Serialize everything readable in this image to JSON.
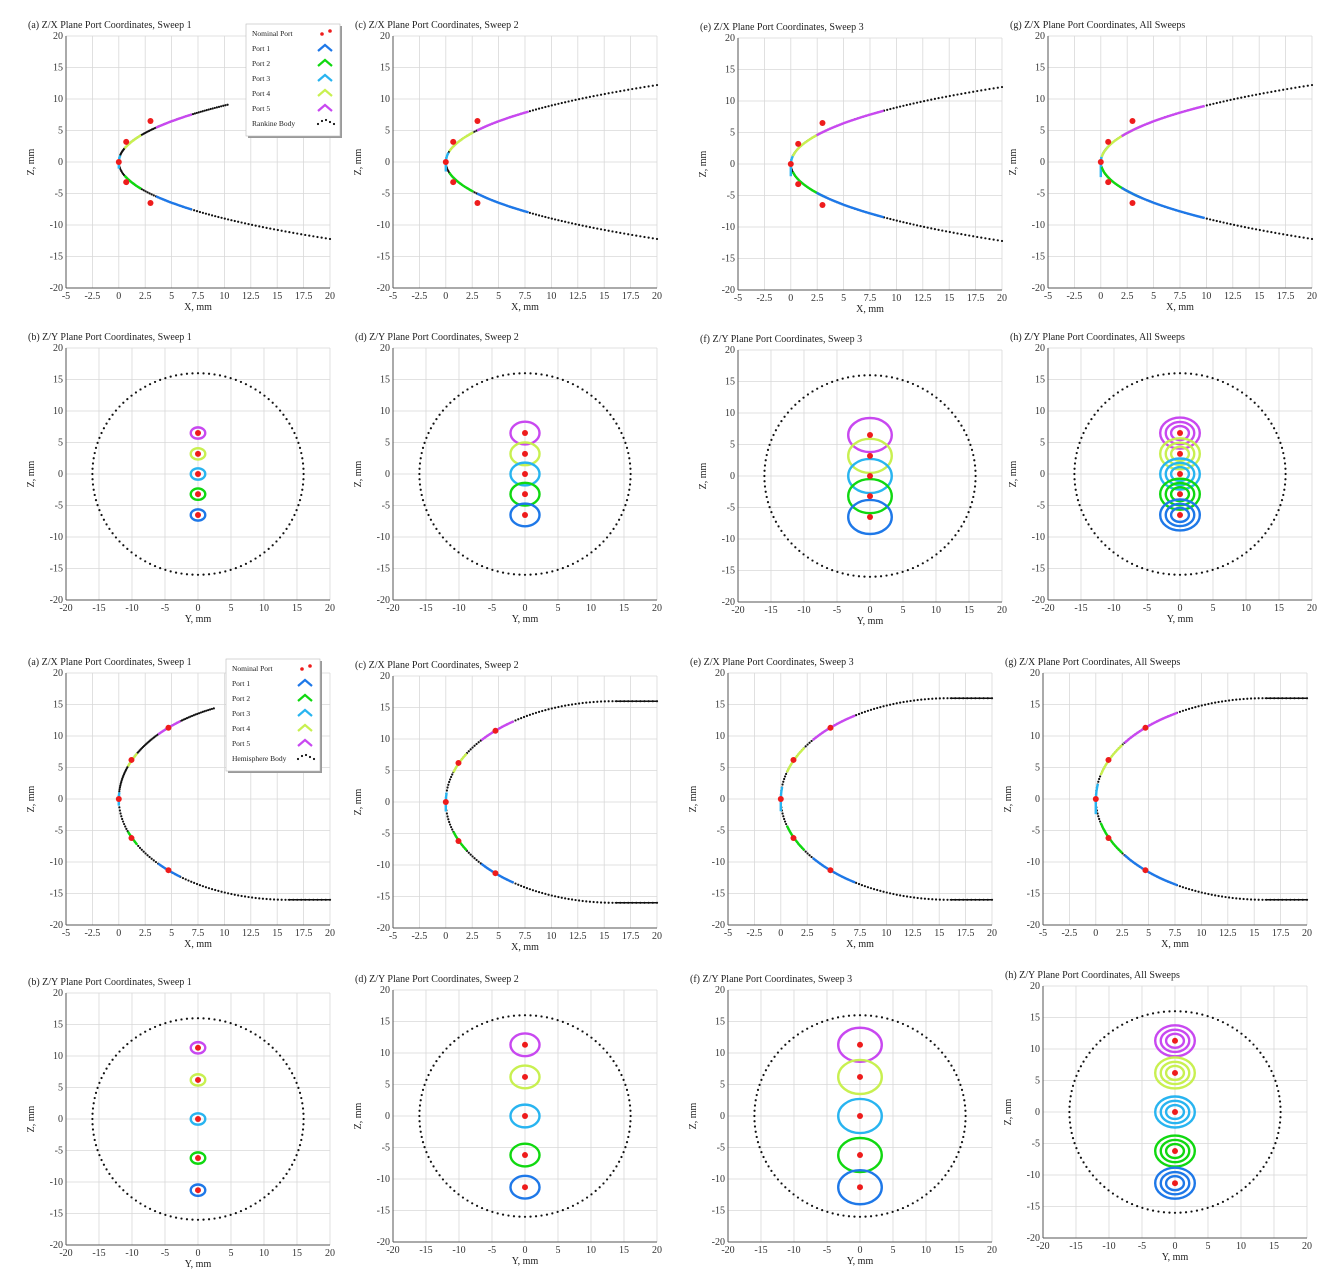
{
  "colors": {
    "nominal": "#ee1c1c",
    "port1": "#1e78e8",
    "port2": "#10d810",
    "port3": "#28b4f0",
    "port4": "#c8f050",
    "port5": "#c848f0",
    "body": "#111111",
    "grid": "#d8d8d8"
  },
  "icons": {
    "legend_swatch": "chevron-icon",
    "nominal_marker": "dot-icon"
  },
  "legends": {
    "rankine": [
      "Nominal Port",
      "Port 1",
      "Port 2",
      "Port 3",
      "Port 4",
      "Port 5",
      "Rankine Body"
    ],
    "hemisphere": [
      "Nominal Port",
      "Port 1",
      "Port 2",
      "Port 3",
      "Port 4",
      "Port 5",
      "Hemisphere Body"
    ]
  },
  "chart_data": [
    {
      "id": "rz1",
      "type": "scatter",
      "body": "rankine",
      "view": "zx",
      "sweep": 1,
      "title": "(a) Z/X Plane Port Coordinates, Sweep 1",
      "xlabel": "X, mm",
      "ylabel": "Z, mm",
      "xlim": [
        -5,
        20
      ],
      "ylim": [
        -20,
        20
      ],
      "xticks": [
        "-5",
        "-2.5",
        "0",
        "2.5",
        "5",
        "7.5",
        "10",
        "12.5",
        "15",
        "17.5",
        "20"
      ],
      "yticks": [
        "20",
        "15",
        "10",
        "5",
        "0",
        "-5",
        "-10",
        "-15",
        "-20"
      ],
      "nominal_ports": [
        {
          "x": 0,
          "z": 0
        },
        {
          "x": 0.7,
          "z": 3.2
        },
        {
          "x": 0.7,
          "z": -3.2
        },
        {
          "x": 3,
          "z": 6.5
        },
        {
          "x": 3,
          "z": -6.5
        }
      ],
      "body_points": "rankine profile x=0..20, z=±0..±13",
      "legend": "top-right"
    },
    {
      "id": "rz2",
      "type": "scatter",
      "body": "rankine",
      "view": "zx",
      "sweep": 2,
      "title": "(c) Z/X Plane Port Coordinates, Sweep 2",
      "xlabel": "X, mm",
      "ylabel": "Z, mm",
      "xlim": [
        -5,
        20
      ],
      "ylim": [
        -20,
        20
      ],
      "xticks": [
        "-5",
        "-2.5",
        "0",
        "2.5",
        "5",
        "7.5",
        "10",
        "12.5",
        "15",
        "17.5",
        "20"
      ],
      "yticks": [
        "20",
        "15",
        "10",
        "5",
        "0",
        "-5",
        "-10",
        "-15",
        "-20"
      ],
      "nominal_ports": [
        {
          "x": 0,
          "z": 0
        },
        {
          "x": 0.7,
          "z": 3.2
        },
        {
          "x": 0.7,
          "z": -3.2
        },
        {
          "x": 3,
          "z": 6.5
        },
        {
          "x": 3,
          "z": -6.5
        }
      ]
    },
    {
      "id": "rz3",
      "type": "scatter",
      "body": "rankine",
      "view": "zx",
      "sweep": 3,
      "title": "(e) Z/X Plane Port Coordinates, Sweep 3",
      "xlabel": "X, mm",
      "ylabel": "Z, mm",
      "xlim": [
        -5,
        20
      ],
      "ylim": [
        -20,
        20
      ],
      "xticks": [
        "-5",
        "-2.5",
        "0",
        "2.5",
        "5",
        "7.5",
        "10",
        "12.5",
        "15",
        "17.5",
        "20"
      ],
      "yticks": [
        "20",
        "15",
        "10",
        "5",
        "0",
        "-5",
        "-10",
        "-15",
        "-20"
      ],
      "nominal_ports": [
        {
          "x": 0,
          "z": 0
        },
        {
          "x": 0.7,
          "z": 3.2
        },
        {
          "x": 0.7,
          "z": -3.2
        },
        {
          "x": 3,
          "z": 6.5
        },
        {
          "x": 3,
          "z": -6.5
        }
      ]
    },
    {
      "id": "rz4",
      "type": "scatter",
      "body": "rankine",
      "view": "zx",
      "sweep": 4,
      "title": "(g) Z/X Plane Port Coordinates, All Sweeps",
      "xlabel": "X, mm",
      "ylabel": "Z, mm",
      "xlim": [
        -5,
        20
      ],
      "ylim": [
        -20,
        20
      ],
      "xticks": [
        "-5",
        "-2.5",
        "0",
        "2.5",
        "5",
        "7.5",
        "10",
        "12.5",
        "15",
        "17.5",
        "20"
      ],
      "yticks": [
        "20",
        "15",
        "10",
        "5",
        "0",
        "-5",
        "-10",
        "-15",
        "-20"
      ],
      "nominal_ports": [
        {
          "x": 0,
          "z": 0
        },
        {
          "x": 0.7,
          "z": 3.2
        },
        {
          "x": 0.7,
          "z": -3.2
        },
        {
          "x": 3,
          "z": 6.5
        },
        {
          "x": 3,
          "z": -6.5
        }
      ]
    },
    {
      "id": "ry1",
      "type": "scatter",
      "body": "rankine",
      "view": "zy",
      "sweep": 1,
      "title": "(b) Z/Y Plane Port Coordinates, Sweep 1",
      "xlabel": "Y, mm",
      "ylabel": "Z, mm",
      "xlim": [
        -20,
        20
      ],
      "ylim": [
        -20,
        20
      ],
      "xticks": [
        "-20",
        "-15",
        "-10",
        "-5",
        "0",
        "5",
        "10",
        "15",
        "20"
      ],
      "yticks": [
        "20",
        "15",
        "10",
        "5",
        "0",
        "-5",
        "-10",
        "-15",
        "-20"
      ],
      "body_radius": 16,
      "nominal_ports": [
        {
          "y": 0,
          "z": 6.5
        },
        {
          "y": 0,
          "z": 3.2
        },
        {
          "y": 0,
          "z": 0
        },
        {
          "y": 0,
          "z": -3.2
        },
        {
          "y": 0,
          "z": -6.5
        }
      ],
      "port_ring_radius_mm": 1.1
    },
    {
      "id": "ry2",
      "type": "scatter",
      "body": "rankine",
      "view": "zy",
      "sweep": 2,
      "title": "(d) Z/Y Plane Port Coordinates, Sweep 2",
      "xlabel": "Y, mm",
      "ylabel": "Z, mm",
      "xlim": [
        -20,
        20
      ],
      "ylim": [
        -20,
        20
      ],
      "xticks": [
        "-20",
        "-15",
        "-10",
        "-5",
        "0",
        "5",
        "10",
        "15",
        "20"
      ],
      "yticks": [
        "20",
        "15",
        "10",
        "5",
        "0",
        "-5",
        "-10",
        "-15",
        "-20"
      ],
      "body_radius": 16,
      "nominal_ports": [
        {
          "y": 0,
          "z": 6.5
        },
        {
          "y": 0,
          "z": 3.2
        },
        {
          "y": 0,
          "z": 0
        },
        {
          "y": 0,
          "z": -3.2
        },
        {
          "y": 0,
          "z": -6.5
        }
      ],
      "port_ring_radius_mm": 2.2
    },
    {
      "id": "ry3",
      "type": "scatter",
      "body": "rankine",
      "view": "zy",
      "sweep": 3,
      "title": "(f) Z/Y Plane Port Coordinates, Sweep 3",
      "xlabel": "Y, mm",
      "ylabel": "Z, mm",
      "xlim": [
        -20,
        20
      ],
      "ylim": [
        -20,
        20
      ],
      "xticks": [
        "-20",
        "-15",
        "-10",
        "-5",
        "0",
        "5",
        "10",
        "15",
        "20"
      ],
      "yticks": [
        "20",
        "15",
        "10",
        "5",
        "0",
        "-5",
        "-10",
        "-15",
        "-20"
      ],
      "body_radius": 16,
      "nominal_ports": [
        {
          "y": 0,
          "z": 6.5
        },
        {
          "y": 0,
          "z": 3.2
        },
        {
          "y": 0,
          "z": 0
        },
        {
          "y": 0,
          "z": -3.2
        },
        {
          "y": 0,
          "z": -6.5
        }
      ],
      "port_ring_radius_mm": 3.3
    },
    {
      "id": "ry4",
      "type": "scatter",
      "body": "rankine",
      "view": "zy",
      "sweep": 4,
      "title": "(h) Z/Y Plane Port Coordinates, All Sweeps",
      "xlabel": "Y, mm",
      "ylabel": "Z, mm",
      "xlim": [
        -20,
        20
      ],
      "ylim": [
        -20,
        20
      ],
      "xticks": [
        "-20",
        "-15",
        "-10",
        "-5",
        "0",
        "5",
        "10",
        "15",
        "20"
      ],
      "yticks": [
        "20",
        "15",
        "10",
        "5",
        "0",
        "-5",
        "-10",
        "-15",
        "-20"
      ],
      "body_radius": 16,
      "nominal_ports": [
        {
          "y": 0,
          "z": 6.5
        },
        {
          "y": 0,
          "z": 3.2
        },
        {
          "y": 0,
          "z": 0
        },
        {
          "y": 0,
          "z": -3.2
        },
        {
          "y": 0,
          "z": -6.5
        }
      ],
      "port_ring_radius_mm": 3.0
    },
    {
      "id": "hz1",
      "type": "scatter",
      "body": "hemisphere",
      "view": "zx",
      "sweep": 1,
      "title": "(a) Z/X Plane Port Coordinates, Sweep 1",
      "xlabel": "X, mm",
      "ylabel": "Z, mm",
      "xlim": [
        -5,
        20
      ],
      "ylim": [
        -20,
        20
      ],
      "xticks": [
        "-5",
        "-2.5",
        "0",
        "2.5",
        "5",
        "7.5",
        "10",
        "12.5",
        "15",
        "17.5",
        "20"
      ],
      "yticks": [
        "20",
        "15",
        "10",
        "5",
        "0",
        "-5",
        "-10",
        "-15",
        "-20"
      ],
      "nominal_ports": [
        {
          "x": 0,
          "z": 0
        },
        {
          "x": 1.2,
          "z": 6.2
        },
        {
          "x": 1.2,
          "z": -6.2
        },
        {
          "x": 4.7,
          "z": 11.3
        },
        {
          "x": 4.7,
          "z": -11.3
        }
      ],
      "legend": "top-right"
    },
    {
      "id": "hz2",
      "type": "scatter",
      "body": "hemisphere",
      "view": "zx",
      "sweep": 2,
      "title": "(c) Z/X Plane Port Coordinates, Sweep 2",
      "xlabel": "X, mm",
      "ylabel": "Z, mm",
      "xlim": [
        -5,
        20
      ],
      "ylim": [
        -20,
        20
      ],
      "xticks": [
        "-5",
        "-2.5",
        "0",
        "2.5",
        "5",
        "7.5",
        "10",
        "12.5",
        "15",
        "17.5",
        "20"
      ],
      "yticks": [
        "20",
        "15",
        "10",
        "5",
        "0",
        "-5",
        "-10",
        "-15",
        "-20"
      ],
      "nominal_ports": [
        {
          "x": 0,
          "z": 0
        },
        {
          "x": 1.2,
          "z": 6.2
        },
        {
          "x": 1.2,
          "z": -6.2
        },
        {
          "x": 4.7,
          "z": 11.3
        },
        {
          "x": 4.7,
          "z": -11.3
        }
      ]
    },
    {
      "id": "hz3",
      "type": "scatter",
      "body": "hemisphere",
      "view": "zx",
      "sweep": 3,
      "title": "(e) Z/X Plane Port Coordinates, Sweep 3",
      "xlabel": "X, mm",
      "ylabel": "Z, mm",
      "xlim": [
        -5,
        20
      ],
      "ylim": [
        -20,
        20
      ],
      "xticks": [
        "-5",
        "-2.5",
        "0",
        "2.5",
        "5",
        "7.5",
        "10",
        "12.5",
        "15",
        "17.5",
        "20"
      ],
      "yticks": [
        "20",
        "15",
        "10",
        "5",
        "0",
        "-5",
        "-10",
        "-15",
        "-20"
      ],
      "nominal_ports": [
        {
          "x": 0,
          "z": 0
        },
        {
          "x": 1.2,
          "z": 6.2
        },
        {
          "x": 1.2,
          "z": -6.2
        },
        {
          "x": 4.7,
          "z": 11.3
        },
        {
          "x": 4.7,
          "z": -11.3
        }
      ]
    },
    {
      "id": "hz4",
      "type": "scatter",
      "body": "hemisphere",
      "view": "zx",
      "sweep": 4,
      "title": "(g) Z/X Plane Port Coordinates, All Sweeps",
      "xlabel": "X, mm",
      "ylabel": "Z, mm",
      "xlim": [
        -5,
        20
      ],
      "ylim": [
        -20,
        20
      ],
      "xticks": [
        "-5",
        "-2.5",
        "0",
        "2.5",
        "5",
        "7.5",
        "10",
        "12.5",
        "15",
        "17.5",
        "20"
      ],
      "yticks": [
        "20",
        "15",
        "10",
        "5",
        "0",
        "-5",
        "-10",
        "-15",
        "-20"
      ],
      "nominal_ports": [
        {
          "x": 0,
          "z": 0
        },
        {
          "x": 1.2,
          "z": 6.2
        },
        {
          "x": 1.2,
          "z": -6.2
        },
        {
          "x": 4.7,
          "z": 11.3
        },
        {
          "x": 4.7,
          "z": -11.3
        }
      ]
    },
    {
      "id": "hy1",
      "type": "scatter",
      "body": "hemisphere",
      "view": "zy",
      "sweep": 1,
      "title": "(b) Z/Y Plane Port Coordinates, Sweep 1",
      "xlabel": "Y, mm",
      "ylabel": "Z, mm",
      "xlim": [
        -20,
        20
      ],
      "ylim": [
        -20,
        20
      ],
      "xticks": [
        "-20",
        "-15",
        "-10",
        "-5",
        "0",
        "5",
        "10",
        "15",
        "20"
      ],
      "yticks": [
        "20",
        "15",
        "10",
        "5",
        "0",
        "-5",
        "-10",
        "-15",
        "-20"
      ],
      "body_radius": 16,
      "nominal_ports": [
        {
          "y": 0,
          "z": 11.3
        },
        {
          "y": 0,
          "z": 6.2
        },
        {
          "y": 0,
          "z": 0
        },
        {
          "y": 0,
          "z": -6.2
        },
        {
          "y": 0,
          "z": -11.3
        }
      ],
      "port_ring_radius_mm": 1.1
    },
    {
      "id": "hy2",
      "type": "scatter",
      "body": "hemisphere",
      "view": "zy",
      "sweep": 2,
      "title": "(d) Z/Y Plane Port Coordinates, Sweep 2",
      "xlabel": "Y, mm",
      "ylabel": "Z, mm",
      "xlim": [
        -20,
        20
      ],
      "ylim": [
        -20,
        20
      ],
      "xticks": [
        "-20",
        "-15",
        "-10",
        "-5",
        "0",
        "5",
        "10",
        "15",
        "20"
      ],
      "yticks": [
        "20",
        "15",
        "10",
        "5",
        "0",
        "-5",
        "-10",
        "-15",
        "-20"
      ],
      "body_radius": 16,
      "nominal_ports": [
        {
          "y": 0,
          "z": 11.3
        },
        {
          "y": 0,
          "z": 6.2
        },
        {
          "y": 0,
          "z": 0
        },
        {
          "y": 0,
          "z": -6.2
        },
        {
          "y": 0,
          "z": -11.3
        }
      ],
      "port_ring_radius_mm": 2.2
    },
    {
      "id": "hy3",
      "type": "scatter",
      "body": "hemisphere",
      "view": "zy",
      "sweep": 3,
      "title": "(f) Z/Y Plane Port Coordinates, Sweep 3",
      "xlabel": "Y, mm",
      "ylabel": "Z, mm",
      "xlim": [
        -20,
        20
      ],
      "ylim": [
        -20,
        20
      ],
      "xticks": [
        "-20",
        "-15",
        "-10",
        "-5",
        "0",
        "5",
        "10",
        "15",
        "20"
      ],
      "yticks": [
        "20",
        "15",
        "10",
        "5",
        "0",
        "-5",
        "-10",
        "-15",
        "-20"
      ],
      "body_radius": 16,
      "nominal_ports": [
        {
          "y": 0,
          "z": 11.3
        },
        {
          "y": 0,
          "z": 6.2
        },
        {
          "y": 0,
          "z": 0
        },
        {
          "y": 0,
          "z": -6.2
        },
        {
          "y": 0,
          "z": -11.3
        }
      ],
      "port_ring_radius_mm": 3.3
    },
    {
      "id": "hy4",
      "type": "scatter",
      "body": "hemisphere",
      "view": "zy",
      "sweep": 4,
      "title": "(h) Z/Y Plane Port Coordinates, All Sweeps",
      "xlabel": "Y, mm",
      "ylabel": "Z, mm",
      "xlim": [
        -20,
        20
      ],
      "ylim": [
        -20,
        20
      ],
      "xticks": [
        "-20",
        "-15",
        "-10",
        "-5",
        "0",
        "5",
        "10",
        "15",
        "20"
      ],
      "yticks": [
        "20",
        "15",
        "10",
        "5",
        "0",
        "-5",
        "-10",
        "-15",
        "-20"
      ],
      "body_radius": 16,
      "nominal_ports": [
        {
          "y": 0,
          "z": 11.3
        },
        {
          "y": 0,
          "z": 6.2
        },
        {
          "y": 0,
          "z": 0
        },
        {
          "y": 0,
          "z": -6.2
        },
        {
          "y": 0,
          "z": -11.3
        }
      ],
      "port_ring_radius_mm": 3.0
    }
  ]
}
